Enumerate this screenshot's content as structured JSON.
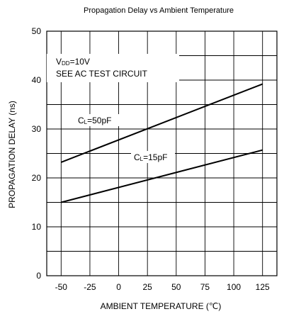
{
  "chart_data": {
    "type": "line",
    "title": "Propagation Delay vs Ambient Temperature",
    "xlabel": "AMBIENT TEMPERATURE (℃)",
    "ylabel": "PROPAGATION DELAY (ns)",
    "xlim": [
      -62.5,
      137.5
    ],
    "ylim": [
      0,
      50
    ],
    "x_ticks": [
      -50,
      -25,
      0,
      25,
      50,
      75,
      100,
      125
    ],
    "y_ticks": [
      0,
      10,
      20,
      30,
      40,
      50
    ],
    "y_gridlines": [
      5,
      10,
      15,
      20,
      25,
      30,
      35,
      40,
      45
    ],
    "grid": true,
    "series": [
      {
        "name": "CL=50pF",
        "x": [
          -50,
          125
        ],
        "y": [
          23.2,
          39.2
        ]
      },
      {
        "name": "CL=15pF",
        "x": [
          -50,
          125
        ],
        "y": [
          15.0,
          25.7
        ]
      }
    ],
    "annotations": {
      "vdd": "VDD=10V",
      "circuit": "SEE AC TEST CIRCUIT",
      "cl50": "CL=50pF",
      "cl15": "CL=15pF"
    }
  }
}
